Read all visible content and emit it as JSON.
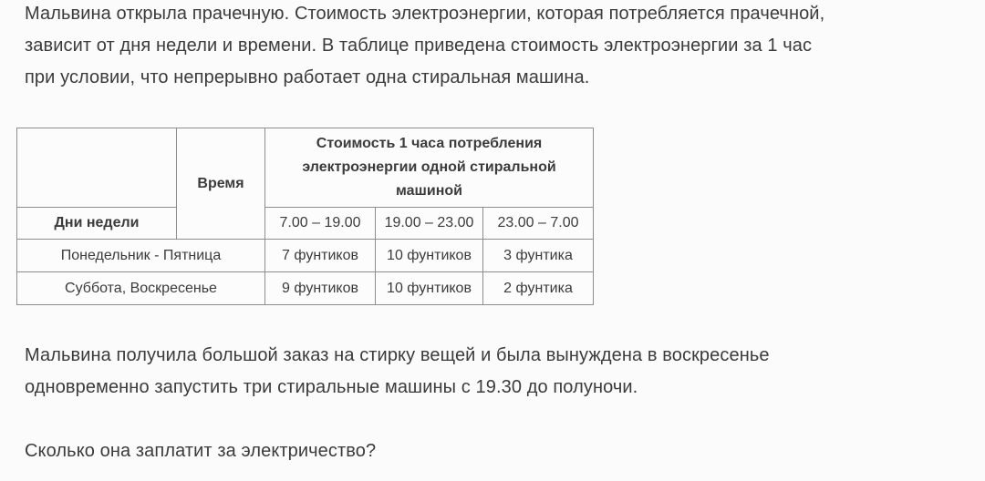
{
  "page": {
    "background": "#fbfbfb",
    "text_color": "#3b3b3b",
    "table_border_color": "#8d8d8d"
  },
  "intro": "Мальвина открыла прачечную. Стоимость электроэнергии, которая потребляется прачечной,\nзависит от дня недели и времени. В таблице приведена стоимость электроэнергии за 1 час\nпри условии, что непрерывно работает одна стиральная машина.",
  "table": {
    "time_header": "Время",
    "cost_header": "Стоимость 1 часа потребления\nэлектроэнергии одной стиральной\nмашиной",
    "days_header": "Дни недели",
    "time_ranges": [
      "7.00 – 19.00",
      "19.00 – 23.00",
      "23.00 – 7.00"
    ],
    "rows": [
      {
        "days": "Понедельник - Пятница",
        "costs": [
          "7 фунтиков",
          "10 фунтиков",
          "3 фунтика"
        ]
      },
      {
        "days": "Суббота, Воскресенье",
        "costs": [
          "9 фунтиков",
          "10 фунтиков",
          "2 фунтика"
        ]
      }
    ]
  },
  "details": "Мальвина получила большой заказ на стирку вещей и была вынуждена в воскресенье\nодновременно запустить три стиральные машины с 19.30 до полуночи.",
  "question": "Сколько она заплатит за электричество?"
}
